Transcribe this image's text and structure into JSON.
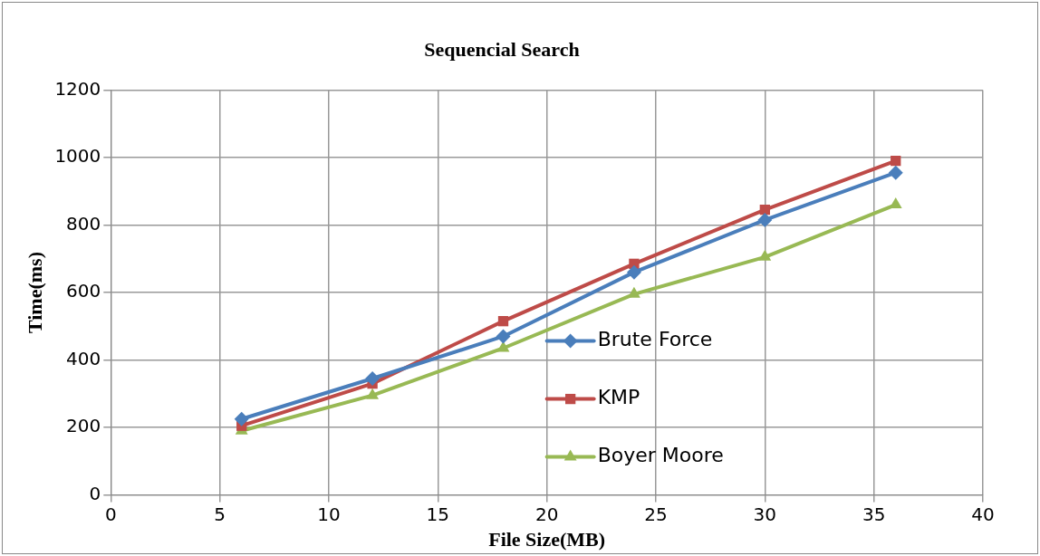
{
  "chart_data": {
    "type": "line",
    "title": "Sequencial Search",
    "xlabel": "File Size(MB)",
    "ylabel": "Time(ms)",
    "x": [
      6,
      12,
      18,
      24,
      30,
      36
    ],
    "series": [
      {
        "name": "Brute Force",
        "color": "#4a7ebb",
        "marker": "diamond",
        "values": [
          225,
          345,
          470,
          660,
          815,
          955
        ]
      },
      {
        "name": "KMP",
        "color": "#be4b48",
        "marker": "square",
        "values": [
          205,
          330,
          515,
          685,
          845,
          990
        ]
      },
      {
        "name": "Boyer Moore",
        "color": "#98b954",
        "marker": "triangle",
        "values": [
          190,
          295,
          435,
          595,
          705,
          860
        ]
      }
    ],
    "xlim": [
      0,
      40
    ],
    "xticks": [
      0,
      5,
      10,
      15,
      20,
      25,
      30,
      35,
      40
    ],
    "ylim": [
      0,
      1200
    ],
    "yticks": [
      0,
      200,
      400,
      600,
      800,
      1000,
      1200
    ],
    "grid": true,
    "legend": "bottom right",
    "line_style": "solid"
  }
}
